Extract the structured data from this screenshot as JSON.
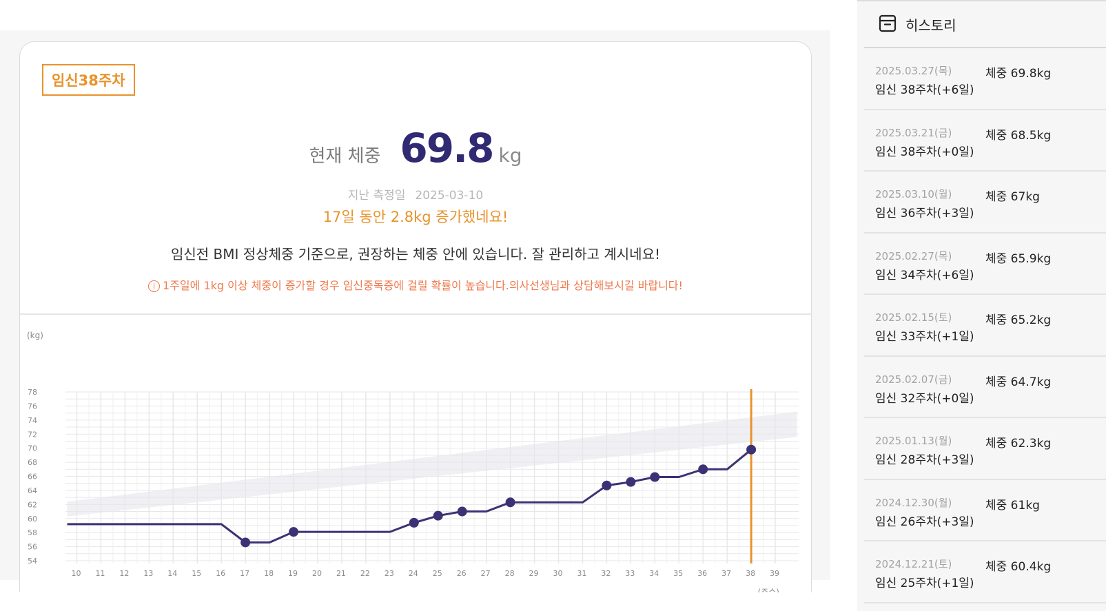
{
  "summary": {
    "week_badge": "임신38주차",
    "current_label": "현재 체중",
    "current_value": "69.8",
    "current_unit": "kg",
    "last_label": "지난 측정일",
    "last_date": "2025-03-10",
    "gain_message": "17일 동안 2.8kg 증가했네요!",
    "bmi_message": "임신전 BMI 정상체중 기준으로, 권장하는 체중  안에 있습니다. 잘 관리하고 계시네요!",
    "warning_icon": "i",
    "warning_message": "1주일에 1kg 이상 체중이 증가할 경우 임신중독증에 걸릴 확률이 높습니다.의사선생님과 상담해보시길 바랍니다!"
  },
  "colors": {
    "accent_orange": "#e8932b",
    "warning_orange": "#ef7a4d",
    "line_purple": "#3b3275",
    "value_purple": "#2f2a72"
  },
  "chart_data": {
    "type": "line",
    "ylabel": "(kg)",
    "xlabel": "(주수)",
    "ylim": [
      54,
      78
    ],
    "yticks": [
      54,
      56,
      58,
      60,
      62,
      64,
      66,
      68,
      70,
      72,
      74,
      76,
      78
    ],
    "xlim": [
      10,
      39
    ],
    "xticks": [
      10,
      11,
      12,
      13,
      14,
      15,
      16,
      17,
      18,
      19,
      20,
      21,
      22,
      23,
      24,
      25,
      26,
      27,
      28,
      29,
      30,
      31,
      32,
      33,
      34,
      35,
      36,
      37,
      38,
      39
    ],
    "grid": true,
    "current_week": 38,
    "line_points": [
      [
        9.6,
        59.2
      ],
      [
        16,
        59.2
      ],
      [
        17,
        56.6
      ],
      [
        18,
        56.6
      ],
      [
        19,
        58.1
      ],
      [
        23,
        58.1
      ],
      [
        24,
        59.4
      ],
      [
        25,
        60.4
      ],
      [
        26,
        61
      ],
      [
        27,
        61
      ],
      [
        28,
        62.3
      ],
      [
        31,
        62.3
      ],
      [
        32,
        64.7
      ],
      [
        33,
        65.2
      ],
      [
        34,
        65.9
      ],
      [
        35,
        65.9
      ],
      [
        36,
        67
      ],
      [
        37,
        67
      ],
      [
        38,
        69.8
      ]
    ],
    "markers": [
      [
        17,
        56.6
      ],
      [
        19,
        58.1
      ],
      [
        24,
        59.4
      ],
      [
        25,
        60.4
      ],
      [
        26,
        61
      ],
      [
        28,
        62.3
      ],
      [
        32,
        64.7
      ],
      [
        33,
        65.2
      ],
      [
        34,
        65.9
      ],
      [
        36,
        67
      ],
      [
        38,
        69.8
      ]
    ],
    "recommended_band": {
      "x": [
        9.6,
        39.9
      ],
      "lower": [
        60.3,
        71.6
      ],
      "upper": [
        62.4,
        75.2
      ]
    }
  },
  "history": {
    "icon": "archive-box-icon",
    "title": "히스토리",
    "items": [
      {
        "date": "2025.03.27(목)",
        "week": "임신 38주차(+6일)",
        "weight": "체중 69.8kg"
      },
      {
        "date": "2025.03.21(금)",
        "week": "임신 38주차(+0일)",
        "weight": "체중 68.5kg"
      },
      {
        "date": "2025.03.10(월)",
        "week": "임신 36주차(+3일)",
        "weight": "체중 67kg"
      },
      {
        "date": "2025.02.27(목)",
        "week": "임신 34주차(+6일)",
        "weight": "체중 65.9kg"
      },
      {
        "date": "2025.02.15(토)",
        "week": "임신 33주차(+1일)",
        "weight": "체중 65.2kg"
      },
      {
        "date": "2025.02.07(금)",
        "week": "임신 32주차(+0일)",
        "weight": "체중 64.7kg"
      },
      {
        "date": "2025.01.13(월)",
        "week": "임신 28주차(+3일)",
        "weight": "체중 62.3kg"
      },
      {
        "date": "2024.12.30(월)",
        "week": "임신 26주차(+3일)",
        "weight": "체중 61kg"
      },
      {
        "date": "2024.12.21(토)",
        "week": "임신 25주차(+1일)",
        "weight": "체중 60.4kg"
      }
    ]
  }
}
